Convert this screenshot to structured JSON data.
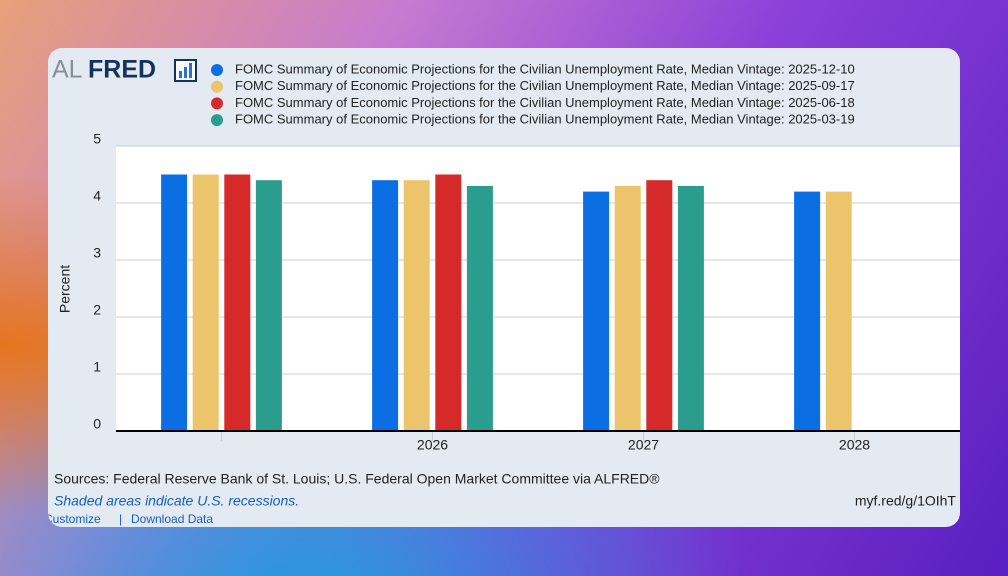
{
  "logo": {
    "left": "AL",
    "right": "FRED"
  },
  "chart_data": {
    "type": "bar",
    "categories": [
      null,
      "2026",
      "2027",
      "2028"
    ],
    "series": [
      {
        "name": "FOMC Summary of Economic Projections for the Civilian Unemployment Rate, Median Vintage: 2025-12-10",
        "color": "#0b6fe3",
        "values": [
          4.5,
          4.4,
          4.2,
          4.2
        ]
      },
      {
        "name": "FOMC Summary of Economic Projections for the Civilian Unemployment Rate, Median Vintage: 2025-09-17",
        "color": "#ebc46b",
        "values": [
          4.5,
          4.4,
          4.3,
          4.2
        ]
      },
      {
        "name": "FOMC Summary of Economic Projections for the Civilian Unemployment Rate, Median Vintage: 2025-06-18",
        "color": "#d62a2a",
        "values": [
          4.5,
          4.5,
          4.4,
          null
        ]
      },
      {
        "name": "FOMC Summary of Economic Projections for the Civilian Unemployment Rate, Median Vintage: 2025-03-19",
        "color": "#2a9d8f",
        "values": [
          4.4,
          4.3,
          4.3,
          null
        ]
      }
    ],
    "y_label": "Percent",
    "ylim": [
      0,
      5
    ],
    "yticks": [
      0,
      1,
      2,
      3,
      4,
      5
    ],
    "grid": true
  },
  "footer": {
    "sources": "Sources: Federal Reserve Bank of St. Louis; U.S. Federal Open Market Committee via ALFRED®",
    "note": "Shaded areas indicate U.S. recessions.",
    "short_url": "myf.red/g/1OIhT",
    "links": [
      "Customize",
      "Download Data"
    ]
  }
}
